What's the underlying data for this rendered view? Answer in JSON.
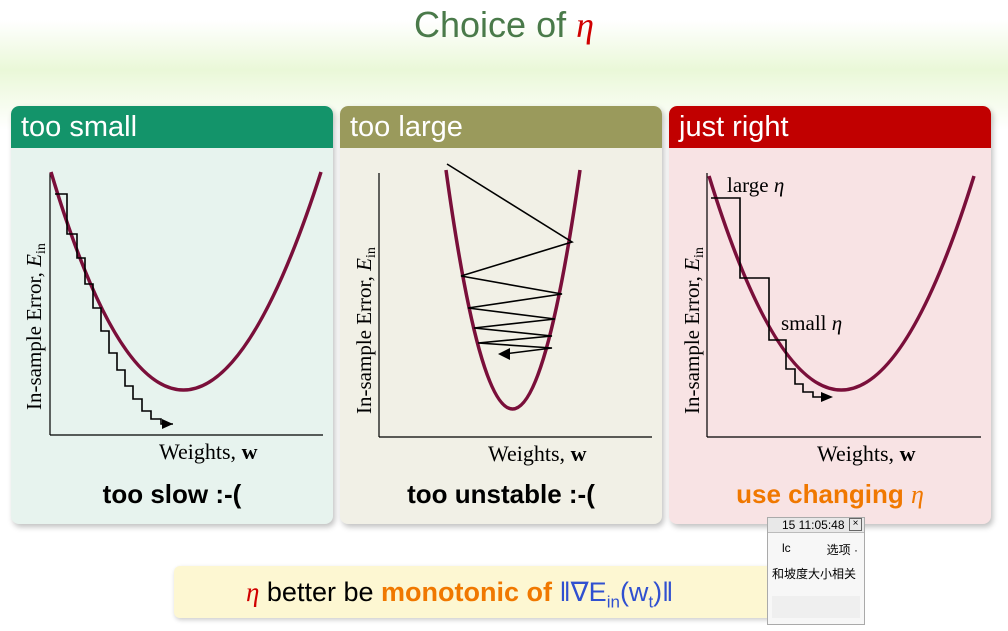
{
  "title": {
    "text": "Choice of ",
    "eta": "η"
  },
  "panels": [
    {
      "header": "too small",
      "ylabel": "In-sample Error, ",
      "ysym": "E",
      "ysub": "in",
      "xlabel": "Weights, ",
      "xsym": "w",
      "caption": "too slow :-("
    },
    {
      "header": "too large",
      "ylabel": "In-sample Error, ",
      "ysym": "E",
      "ysub": "in",
      "xlabel": "Weights, ",
      "xsym": "w",
      "caption": "too unstable :-("
    },
    {
      "header": "just right",
      "ylabel": "In-sample Error, ",
      "ysym": "E",
      "ysub": "in",
      "xlabel": "Weights, ",
      "xsym": "w",
      "caption": "use changing ",
      "caption_eta": "η",
      "label_large": "large ",
      "label_small": "small ",
      "eta": "η"
    }
  ],
  "bottom": {
    "eta": "η",
    "text1": " better be ",
    "highlight": "monotonic of ",
    "formula": "‖∇E",
    "sub": "in",
    "formula2": "(w",
    "subt": "t",
    "formula3": ")‖"
  },
  "ime": {
    "time": "15 11:05:48",
    "input": "lc",
    "options": "选项",
    "suggestion": "和坡度大小相关"
  }
}
